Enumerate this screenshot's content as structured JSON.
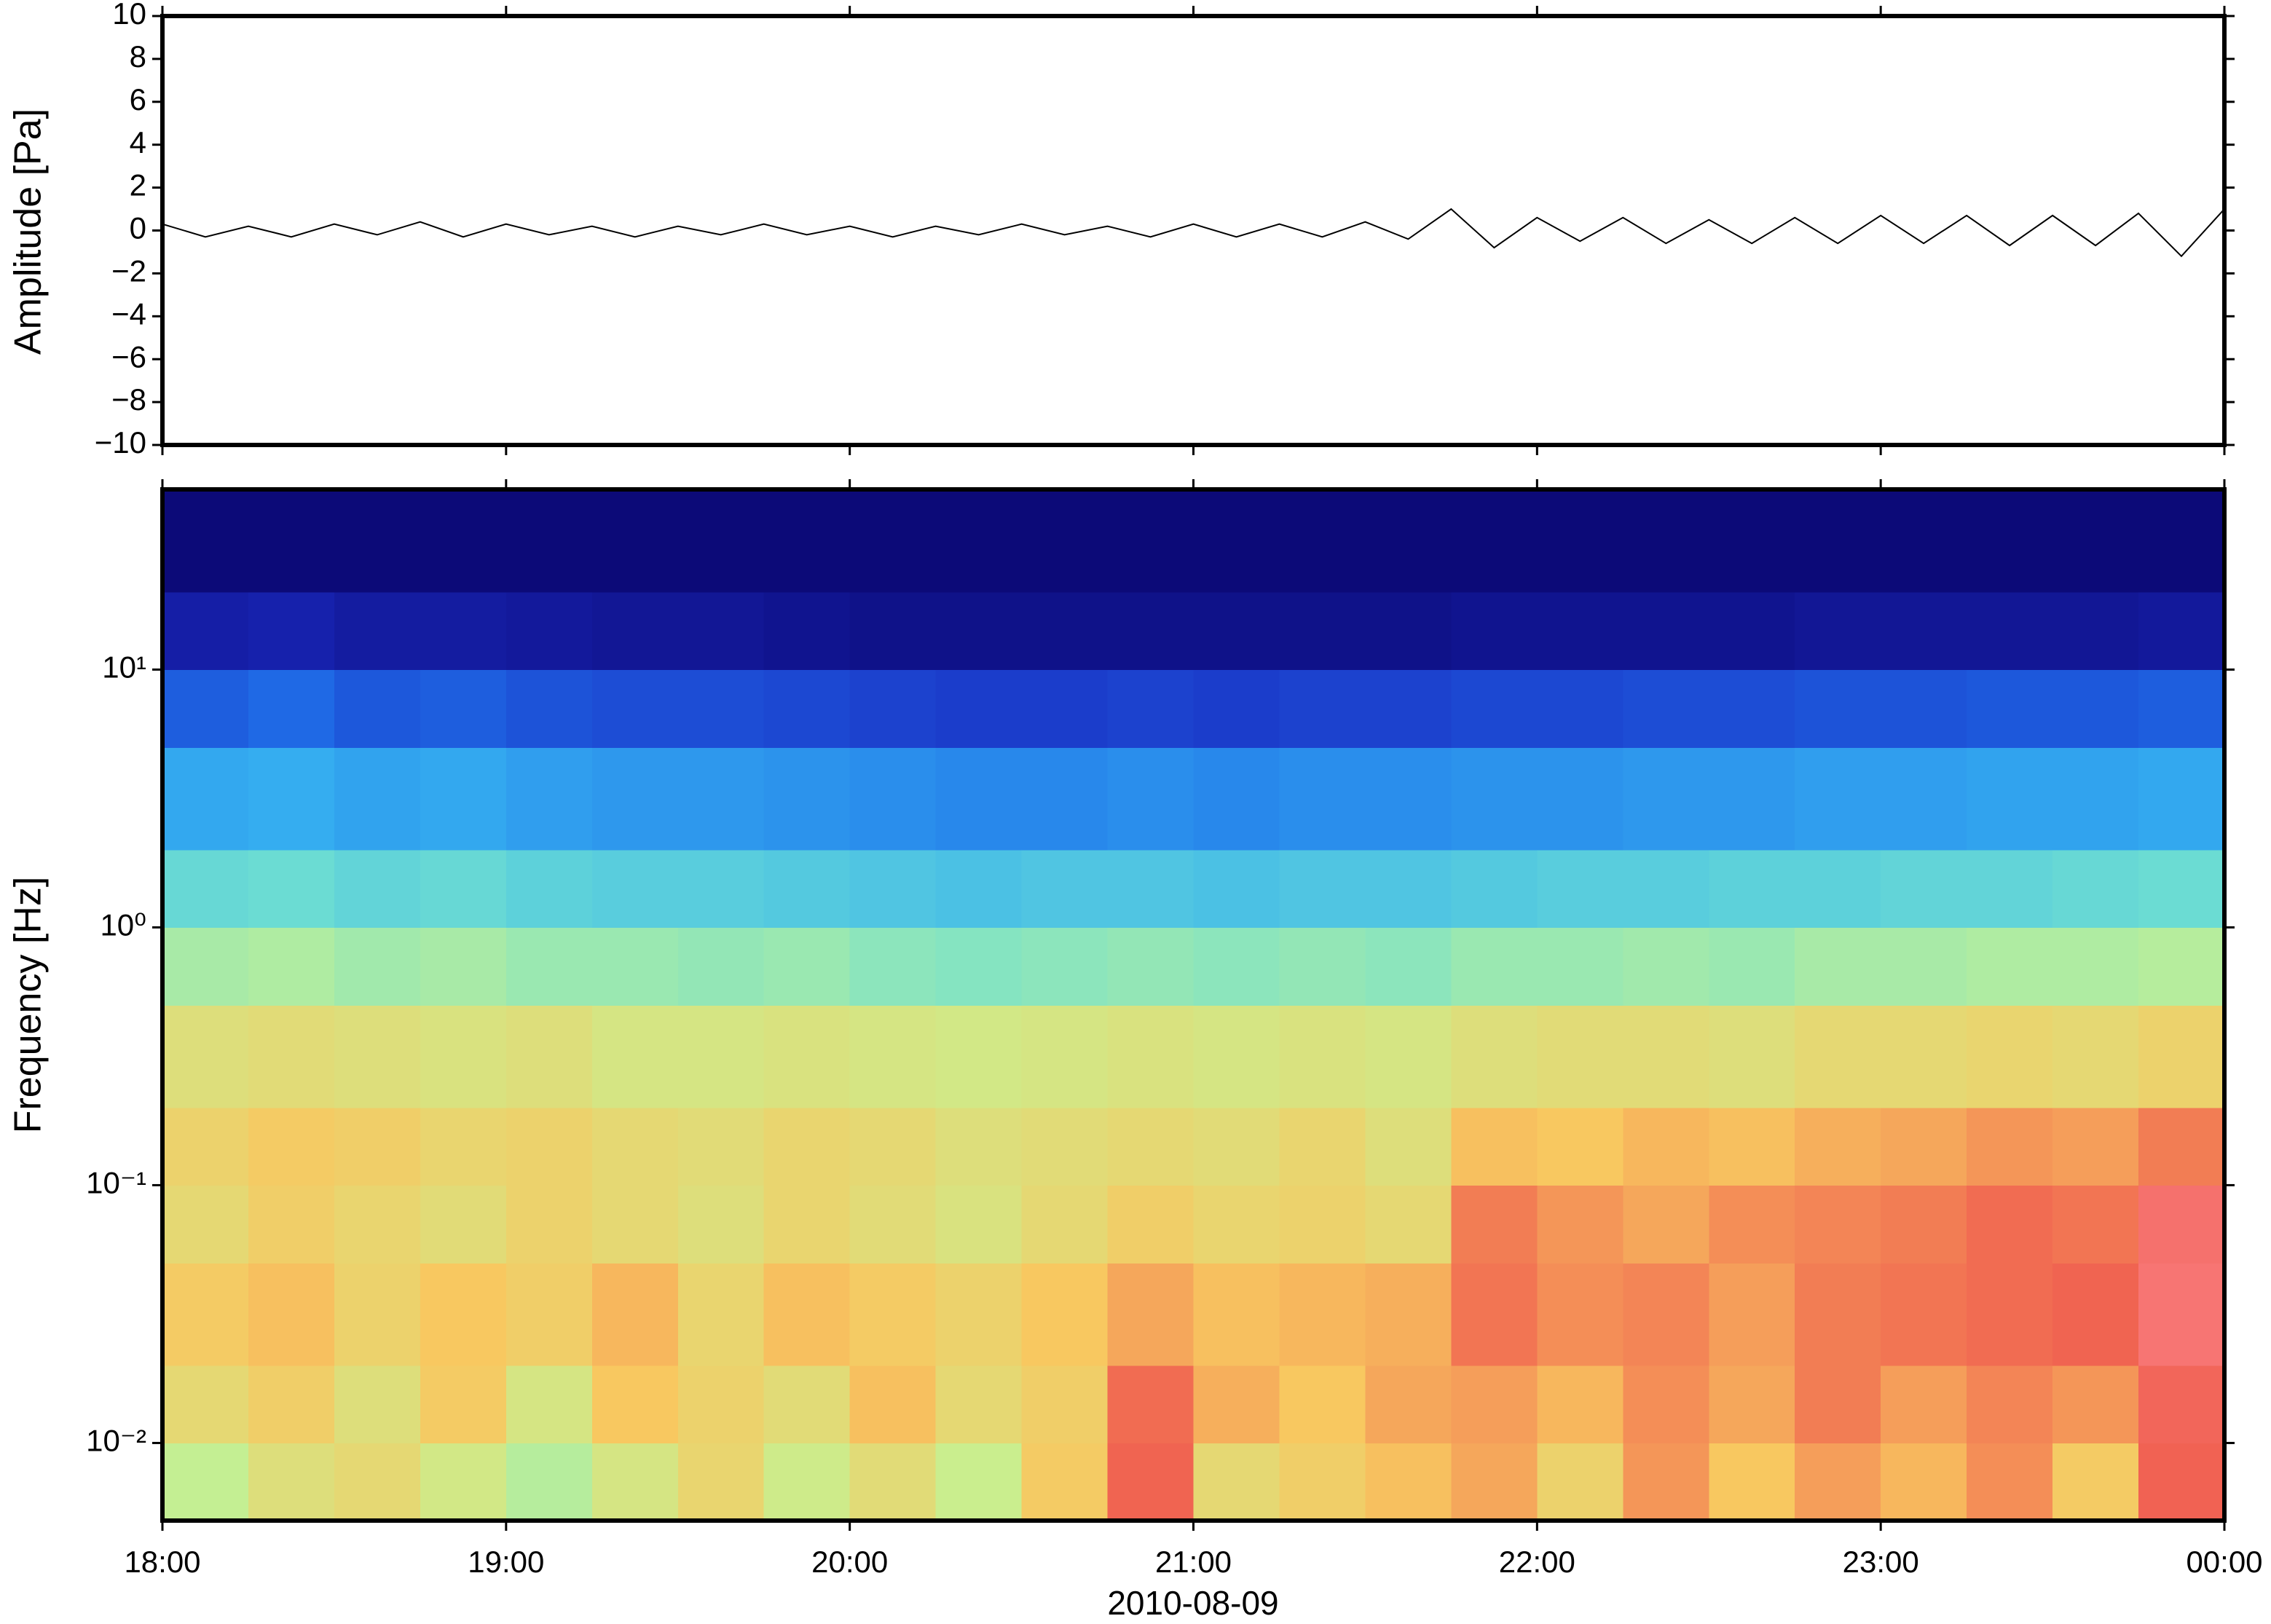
{
  "chart_data": [
    {
      "type": "line",
      "ylabel": "Amplitude [Pa]",
      "color": "#000000",
      "x": [
        18,
        18.125,
        18.25,
        18.375,
        18.5,
        18.625,
        18.75,
        18.875,
        19,
        19.125,
        19.25,
        19.375,
        19.5,
        19.625,
        19.75,
        19.875,
        20,
        20.125,
        20.25,
        20.375,
        20.5,
        20.625,
        20.75,
        20.875,
        21,
        21.125,
        21.25,
        21.375,
        21.5,
        21.625,
        21.75,
        21.875,
        22,
        22.125,
        22.25,
        22.375,
        22.5,
        22.625,
        22.75,
        22.875,
        23,
        23.125,
        23.25,
        23.375,
        23.5,
        23.625,
        23.75,
        23.875,
        24
      ],
      "values": [
        0.3,
        -0.3,
        0.2,
        -0.3,
        0.3,
        -0.2,
        0.4,
        -0.3,
        0.3,
        -0.2,
        0.2,
        -0.3,
        0.2,
        -0.2,
        0.3,
        -0.2,
        0.2,
        -0.3,
        0.2,
        -0.2,
        0.3,
        -0.2,
        0.2,
        -0.3,
        0.3,
        -0.3,
        0.3,
        -0.3,
        0.4,
        -0.4,
        1.0,
        -0.8,
        0.6,
        -0.5,
        0.6,
        -0.6,
        0.5,
        -0.6,
        0.6,
        -0.6,
        0.7,
        -0.6,
        0.7,
        -0.7,
        0.7,
        -0.7,
        0.8,
        -1.2,
        1.0
      ],
      "xlim": [
        18,
        24
      ],
      "xticks": [
        18,
        19,
        20,
        21,
        22,
        23,
        24
      ],
      "ylim": [
        -10,
        10
      ],
      "yticks": [
        {
          "value": -10,
          "label": "−10"
        },
        {
          "value": -8,
          "label": "−8"
        },
        {
          "value": -6,
          "label": "−6"
        },
        {
          "value": -4,
          "label": "−4"
        },
        {
          "value": -2,
          "label": "−2"
        },
        0,
        2,
        4,
        6,
        8,
        10
      ]
    },
    {
      "type": "spectrogram",
      "ylabel": "Frequency [Hz]",
      "xlabel": "2010-08-09",
      "yscale": "log",
      "xlim": [
        18,
        24
      ],
      "xticks": [
        {
          "value": 18,
          "label": "18:00"
        },
        {
          "value": 19,
          "label": "19:00"
        },
        {
          "value": 20,
          "label": "20:00"
        },
        {
          "value": 21,
          "label": "21:00"
        },
        {
          "value": 22,
          "label": "22:00"
        },
        {
          "value": 23,
          "label": "23:00"
        },
        {
          "value": 24,
          "label": "00:00"
        }
      ],
      "ylim": [
        0.005,
        50
      ],
      "yticks": [
        {
          "value": 0.01,
          "label": "10⁻²"
        },
        {
          "value": 0.1,
          "label": "10⁻¹"
        },
        {
          "value": 1,
          "label": "10⁰"
        },
        {
          "value": 10,
          "label": "10¹"
        }
      ],
      "time_edges": [
        18,
        18.25,
        18.5,
        18.75,
        19,
        19.25,
        19.5,
        19.75,
        20,
        20.25,
        20.5,
        20.75,
        21,
        21.25,
        21.5,
        21.75,
        22,
        22.25,
        22.5,
        22.75,
        23,
        23.25,
        23.5,
        23.75,
        24
      ],
      "frequency_edges": [
        0.005,
        0.01,
        0.02,
        0.05,
        0.1,
        0.2,
        0.5,
        1,
        2,
        5,
        10,
        20,
        50
      ],
      "zlim": [
        0,
        10
      ],
      "colormap": [
        "#0c0a78",
        "#1a2ac0",
        "#1f6ee8",
        "#36b0f0",
        "#70e0d0",
        "#c8f090",
        "#f8c860",
        "#f06050",
        "#ff90a0"
      ],
      "z": [
        [
          6.2,
          6.8,
          7.0,
          6.5,
          6.0,
          6.6,
          7.1,
          6.4,
          6.9,
          6.3,
          7.4,
          8.7,
          7.0,
          7.3,
          7.6,
          7.9,
          7.2,
          8.1,
          7.5,
          8.0,
          7.7,
          8.2,
          7.4,
          8.8
        ],
        [
          7.0,
          7.3,
          6.8,
          7.4,
          6.6,
          7.5,
          7.2,
          6.9,
          7.6,
          7.0,
          7.3,
          8.6,
          7.8,
          7.5,
          7.9,
          8.0,
          7.7,
          8.2,
          7.9,
          8.4,
          8.0,
          8.3,
          8.1,
          8.9
        ],
        [
          7.4,
          7.6,
          7.2,
          7.5,
          7.3,
          7.7,
          7.1,
          7.6,
          7.4,
          7.2,
          7.5,
          7.9,
          7.6,
          7.7,
          7.8,
          8.5,
          8.2,
          8.3,
          8.0,
          8.4,
          8.5,
          8.6,
          8.7,
          9.3
        ],
        [
          7.0,
          7.3,
          7.1,
          6.9,
          7.2,
          7.0,
          6.8,
          7.1,
          6.9,
          6.7,
          7.0,
          7.3,
          7.1,
          7.2,
          7.0,
          8.4,
          8.1,
          7.9,
          8.2,
          8.3,
          8.4,
          8.6,
          8.5,
          9.2
        ],
        [
          7.2,
          7.4,
          7.3,
          7.1,
          7.2,
          7.0,
          6.9,
          7.1,
          7.0,
          6.8,
          6.9,
          7.0,
          6.9,
          7.1,
          6.8,
          7.6,
          7.5,
          7.7,
          7.6,
          7.8,
          7.9,
          8.1,
          8.0,
          8.4
        ],
        [
          6.8,
          6.9,
          6.8,
          6.7,
          6.8,
          6.6,
          6.6,
          6.7,
          6.6,
          6.5,
          6.6,
          6.7,
          6.6,
          6.7,
          6.6,
          6.8,
          6.9,
          6.9,
          6.8,
          7.0,
          7.0,
          7.1,
          7.0,
          7.2
        ],
        [
          5.8,
          5.9,
          5.7,
          5.8,
          5.6,
          5.6,
          5.5,
          5.6,
          5.4,
          5.3,
          5.4,
          5.5,
          5.4,
          5.5,
          5.4,
          5.6,
          5.6,
          5.7,
          5.6,
          5.8,
          5.8,
          5.9,
          5.9,
          6.0
        ],
        [
          4.8,
          4.9,
          4.7,
          4.8,
          4.6,
          4.5,
          4.5,
          4.4,
          4.3,
          4.2,
          4.3,
          4.3,
          4.2,
          4.3,
          4.3,
          4.4,
          4.5,
          4.5,
          4.6,
          4.6,
          4.7,
          4.7,
          4.8,
          4.9
        ],
        [
          3.6,
          3.7,
          3.5,
          3.6,
          3.4,
          3.3,
          3.3,
          3.2,
          3.1,
          3.0,
          3.0,
          3.1,
          3.0,
          3.1,
          3.1,
          3.2,
          3.2,
          3.3,
          3.3,
          3.4,
          3.4,
          3.5,
          3.5,
          3.6
        ],
        [
          2.2,
          2.4,
          2.1,
          2.2,
          2.0,
          1.9,
          1.9,
          1.8,
          1.7,
          1.6,
          1.6,
          1.7,
          1.6,
          1.7,
          1.7,
          1.8,
          1.8,
          1.9,
          1.9,
          2.0,
          2.0,
          2.1,
          2.1,
          2.2
        ],
        [
          0.8,
          0.9,
          0.7,
          0.7,
          0.6,
          0.5,
          0.5,
          0.4,
          0.3,
          0.3,
          0.3,
          0.3,
          0.3,
          0.3,
          0.3,
          0.4,
          0.4,
          0.4,
          0.4,
          0.5,
          0.5,
          0.5,
          0.5,
          0.6
        ],
        [
          0,
          0,
          0,
          0,
          0,
          0,
          0,
          0,
          0,
          0,
          0,
          0,
          0,
          0,
          0,
          0,
          0,
          0,
          0,
          0,
          0,
          0,
          0,
          0
        ]
      ]
    }
  ]
}
